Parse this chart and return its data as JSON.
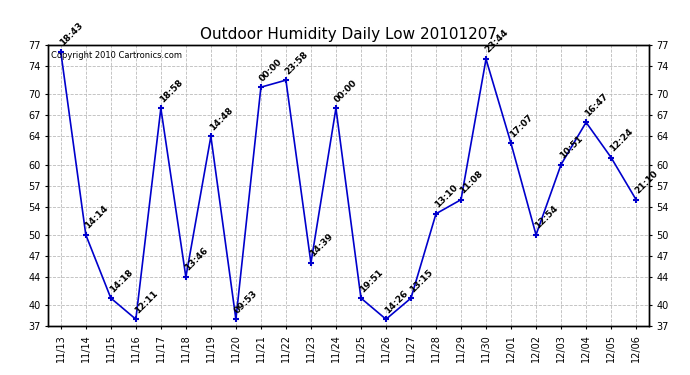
{
  "title": "Outdoor Humidity Daily Low 20101207",
  "copyright": "Copyright 2010 Cartronics.com",
  "x_labels": [
    "11/13",
    "11/14",
    "11/15",
    "11/16",
    "11/17",
    "11/18",
    "11/19",
    "11/20",
    "11/21",
    "11/22",
    "11/23",
    "11/24",
    "11/25",
    "11/26",
    "11/27",
    "11/28",
    "11/29",
    "11/30",
    "12/01",
    "12/02",
    "12/03",
    "12/04",
    "12/05",
    "12/06"
  ],
  "y_values": [
    76,
    50,
    41,
    38,
    68,
    44,
    64,
    38,
    71,
    72,
    46,
    68,
    41,
    38,
    41,
    53,
    55,
    75,
    63,
    50,
    60,
    66,
    61,
    55
  ],
  "time_labels": [
    "18:43",
    "14:14",
    "14:18",
    "12:11",
    "18:58",
    "13:46",
    "14:48",
    "09:53",
    "00:00",
    "23:58",
    "14:39",
    "00:00",
    "19:51",
    "14:26",
    "13:15",
    "13:10",
    "11:08",
    "23:44",
    "17:07",
    "12:54",
    "10:51",
    "16:47",
    "12:24",
    "21:10"
  ],
  "line_color": "#0000cc",
  "marker_color": "#0000cc",
  "bg_color": "#ffffff",
  "grid_color": "#bbbbbb",
  "ylim_min": 37,
  "ylim_max": 77,
  "yticks": [
    37,
    40,
    44,
    47,
    50,
    54,
    57,
    60,
    64,
    67,
    70,
    74,
    77
  ],
  "title_fontsize": 11,
  "label_fontsize": 6.5,
  "copyright_fontsize": 6,
  "tick_fontsize": 7
}
